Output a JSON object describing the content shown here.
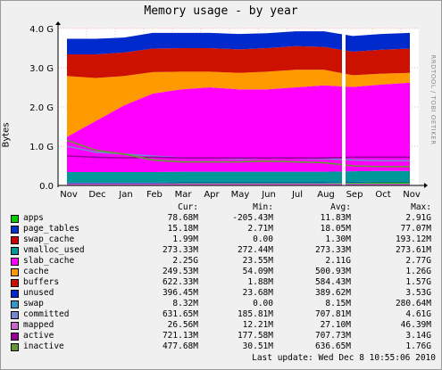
{
  "window": {
    "title": "Memory usage - by year",
    "watermark": "RRDTOOL / TOBI OETIKER",
    "last_update": "Last update: Wed Dec  8 10:55:06 2010"
  },
  "legend_header": {
    "cur": "Cur:",
    "min": "Min:",
    "avg": "Avg:",
    "max": "Max:"
  },
  "legend": [
    {
      "name": "apps",
      "color": "#00cc00",
      "cur": "78.68M",
      "min": "-205.43M",
      "avg": "11.83M",
      "max": "2.91G"
    },
    {
      "name": "page_tables",
      "color": "#0033cc",
      "cur": "15.18M",
      "min": "2.71M",
      "avg": "18.05M",
      "max": "77.07M"
    },
    {
      "name": "swap_cache",
      "color": "#cc0000",
      "cur": "1.99M",
      "min": "0.00",
      "avg": "1.30M",
      "max": "193.12M"
    },
    {
      "name": "vmalloc_used",
      "color": "#009999",
      "cur": "273.33M",
      "min": "272.44M",
      "avg": "273.33M",
      "max": "273.61M"
    },
    {
      "name": "slab_cache",
      "color": "#ff00ff",
      "cur": "2.25G",
      "min": "23.55M",
      "avg": "2.11G",
      "max": "2.77G"
    },
    {
      "name": "cache",
      "color": "#ff9900",
      "cur": "249.53M",
      "min": "54.09M",
      "avg": "500.93M",
      "max": "1.26G"
    },
    {
      "name": "buffers",
      "color": "#cc1100",
      "cur": "622.33M",
      "min": "1.88M",
      "avg": "584.43M",
      "max": "1.57G"
    },
    {
      "name": "unused",
      "color": "#002acc",
      "cur": "396.45M",
      "min": "23.68M",
      "avg": "389.62M",
      "max": "3.53G"
    },
    {
      "name": "swap",
      "color": "#3399cc",
      "cur": "8.32M",
      "min": "0.00",
      "avg": "8.15M",
      "max": "280.64M"
    },
    {
      "name": "committed",
      "color": "#7788cc",
      "cur": "631.65M",
      "min": "185.81M",
      "avg": "707.81M",
      "max": "4.61G"
    },
    {
      "name": "mapped",
      "color": "#cc66cc",
      "cur": "26.56M",
      "min": "12.21M",
      "avg": "27.10M",
      "max": "46.39M"
    },
    {
      "name": "active",
      "color": "#990099",
      "cur": "721.13M",
      "min": "177.58M",
      "avg": "707.73M",
      "max": "3.14G"
    },
    {
      "name": "inactive",
      "color": "#669933",
      "cur": "477.68M",
      "min": "30.51M",
      "avg": "636.65M",
      "max": "1.76G"
    }
  ],
  "chart_data": {
    "type": "area",
    "title": "Memory usage - by year",
    "ylabel": "Bytes",
    "xlabel": "",
    "ylim": [
      0,
      4
    ],
    "y_unit": "G",
    "y_ticks": [
      "0.0",
      "1.0 G",
      "2.0 G",
      "3.0 G",
      "4.0 G"
    ],
    "y_tick_values": [
      0,
      1,
      2,
      3,
      4
    ],
    "x": [
      "Nov",
      "Dec",
      "Jan",
      "Feb",
      "Mar",
      "Apr",
      "May",
      "Jun",
      "Jul",
      "Aug",
      "Sep",
      "Oct",
      "Nov"
    ],
    "grid": true,
    "gap_between": [
      "Aug",
      "Sep"
    ],
    "stack_order": [
      "apps",
      "page_tables",
      "swap_cache",
      "vmalloc_used",
      "slab_cache",
      "cache",
      "buffers",
      "unused"
    ],
    "stacked_series": [
      {
        "name": "apps",
        "color": "#00cc00",
        "values": [
          0.05,
          0.05,
          0.05,
          0.05,
          0.06,
          0.06,
          0.06,
          0.06,
          0.06,
          0.06,
          0.07,
          0.08,
          0.08
        ]
      },
      {
        "name": "page_tables",
        "color": "#0033cc",
        "values": [
          0.02,
          0.02,
          0.02,
          0.02,
          0.02,
          0.02,
          0.02,
          0.02,
          0.02,
          0.02,
          0.02,
          0.02,
          0.02
        ]
      },
      {
        "name": "swap_cache",
        "color": "#cc0000",
        "values": [
          0.0,
          0.0,
          0.0,
          0.0,
          0.0,
          0.0,
          0.0,
          0.0,
          0.0,
          0.0,
          0.0,
          0.0,
          0.0
        ]
      },
      {
        "name": "vmalloc_used",
        "color": "#009999",
        "values": [
          0.27,
          0.27,
          0.27,
          0.27,
          0.27,
          0.27,
          0.27,
          0.27,
          0.27,
          0.27,
          0.27,
          0.27,
          0.27
        ]
      },
      {
        "name": "slab_cache",
        "color": "#ff00ff",
        "values": [
          0.9,
          1.3,
          1.7,
          2.0,
          2.1,
          2.15,
          2.1,
          2.1,
          2.15,
          2.2,
          2.15,
          2.2,
          2.25
        ]
      },
      {
        "name": "cache",
        "color": "#ff9900",
        "values": [
          1.55,
          1.1,
          0.75,
          0.55,
          0.45,
          0.4,
          0.42,
          0.45,
          0.45,
          0.4,
          0.3,
          0.28,
          0.25
        ]
      },
      {
        "name": "buffers",
        "color": "#cc1100",
        "values": [
          0.55,
          0.6,
          0.6,
          0.6,
          0.6,
          0.6,
          0.6,
          0.6,
          0.6,
          0.58,
          0.6,
          0.61,
          0.62
        ]
      },
      {
        "name": "unused",
        "color": "#002acc",
        "values": [
          0.4,
          0.4,
          0.38,
          0.4,
          0.39,
          0.39,
          0.39,
          0.38,
          0.38,
          0.4,
          0.4,
          0.4,
          0.4
        ]
      }
    ],
    "line_series": [
      {
        "name": "swap",
        "color": "#3399cc",
        "values": [
          0.01,
          0.01,
          0.01,
          0.01,
          0.01,
          0.01,
          0.01,
          0.01,
          0.01,
          0.01,
          0.01,
          0.01,
          0.01
        ]
      },
      {
        "name": "committed",
        "color": "#7788cc",
        "values": [
          1.0,
          0.85,
          0.8,
          0.75,
          0.7,
          0.7,
          0.68,
          0.7,
          0.7,
          0.68,
          0.65,
          0.63,
          0.63
        ]
      },
      {
        "name": "mapped",
        "color": "#cc66cc",
        "values": [
          0.03,
          0.03,
          0.03,
          0.03,
          0.03,
          0.03,
          0.03,
          0.03,
          0.03,
          0.03,
          0.03,
          0.03,
          0.03
        ]
      },
      {
        "name": "active",
        "color": "#990099",
        "values": [
          0.75,
          0.72,
          0.7,
          0.72,
          0.7,
          0.7,
          0.7,
          0.7,
          0.7,
          0.7,
          0.72,
          0.72,
          0.72
        ]
      },
      {
        "name": "inactive",
        "color": "#669933",
        "values": [
          1.15,
          0.9,
          0.8,
          0.65,
          0.6,
          0.6,
          0.6,
          0.62,
          0.6,
          0.58,
          0.5,
          0.48,
          0.48
        ]
      }
    ]
  }
}
